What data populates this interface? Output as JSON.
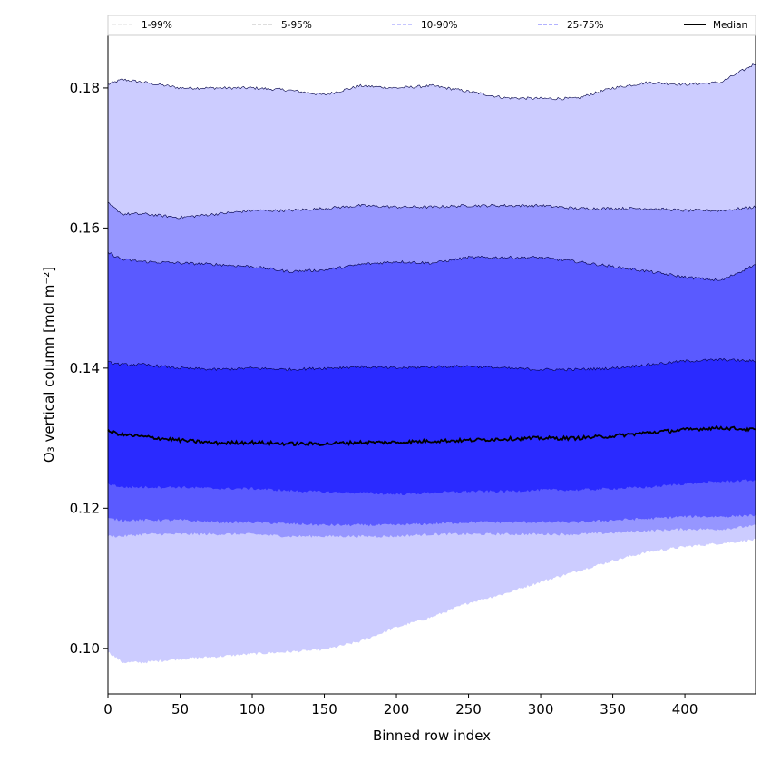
{
  "chart_data": {
    "type": "area",
    "title": "",
    "xlabel": "Binned row index",
    "ylabel": "O₃ vertical column [mol m⁻²]",
    "xlim": [
      0,
      449
    ],
    "ylim": [
      0.0935,
      0.1875
    ],
    "xticks": [
      0,
      50,
      100,
      150,
      200,
      250,
      300,
      350,
      400
    ],
    "yticks": [
      0.1,
      0.12,
      0.14,
      0.16,
      0.18
    ],
    "ytick_labels": [
      "0.10",
      "0.12",
      "0.14",
      "0.16",
      "0.18"
    ],
    "grid": false,
    "legend_position": "top, outside plot, single row",
    "x": [
      0,
      10,
      25,
      50,
      75,
      100,
      125,
      150,
      175,
      200,
      225,
      250,
      275,
      300,
      325,
      350,
      375,
      400,
      425,
      449
    ],
    "bands": [
      {
        "name": "1-99%",
        "fill": "#ccccff",
        "line": "#dddddd",
        "upper": [
          0.1805,
          0.1812,
          0.1808,
          0.18,
          0.18,
          0.18,
          0.1797,
          0.179,
          0.1803,
          0.18,
          0.1803,
          0.1795,
          0.1786,
          0.1785,
          0.1785,
          0.18,
          0.1808,
          0.1805,
          0.1808,
          0.1835
        ],
        "lower": [
          0.0995,
          0.098,
          0.098,
          0.0985,
          0.0988,
          0.0992,
          0.0995,
          0.0998,
          0.101,
          0.103,
          0.1045,
          0.1065,
          0.1078,
          0.1095,
          0.111,
          0.1125,
          0.1138,
          0.1145,
          0.115,
          0.1155
        ]
      },
      {
        "name": "5-95%",
        "fill": "#9696ff",
        "line": "#bbbbbb",
        "upper": [
          0.1635,
          0.162,
          0.162,
          0.1615,
          0.162,
          0.1625,
          0.1625,
          0.1628,
          0.1632,
          0.163,
          0.163,
          0.1632,
          0.1632,
          0.1632,
          0.1628,
          0.1628,
          0.1628,
          0.1625,
          0.1625,
          0.163
        ],
        "lower": [
          0.116,
          0.116,
          0.1163,
          0.1163,
          0.1163,
          0.1163,
          0.116,
          0.116,
          0.116,
          0.116,
          0.1163,
          0.1163,
          0.1163,
          0.1163,
          0.1163,
          0.1165,
          0.1168,
          0.117,
          0.117,
          0.1175
        ]
      },
      {
        "name": "10-90%",
        "fill": "#5a5aff",
        "line": "#8c8cff",
        "upper": [
          0.1565,
          0.1555,
          0.1552,
          0.155,
          0.1548,
          0.1545,
          0.1538,
          0.154,
          0.1548,
          0.1552,
          0.155,
          0.1558,
          0.1558,
          0.1558,
          0.1552,
          0.1545,
          0.1538,
          0.153,
          0.1525,
          0.1548
        ],
        "lower": [
          0.1185,
          0.1183,
          0.1183,
          0.1183,
          0.118,
          0.118,
          0.1178,
          0.1176,
          0.1176,
          0.1176,
          0.1178,
          0.118,
          0.118,
          0.118,
          0.118,
          0.1183,
          0.1185,
          0.1188,
          0.1188,
          0.119
        ]
      },
      {
        "name": "25-75%",
        "fill": "#2a2aff",
        "line": "#6464ff",
        "upper": [
          0.1408,
          0.1405,
          0.1405,
          0.14,
          0.1398,
          0.14,
          0.1398,
          0.14,
          0.1402,
          0.14,
          0.1402,
          0.1403,
          0.14,
          0.1398,
          0.1398,
          0.14,
          0.1405,
          0.141,
          0.1412,
          0.141
        ],
        "lower": [
          0.1235,
          0.123,
          0.123,
          0.123,
          0.1228,
          0.1228,
          0.1225,
          0.1223,
          0.1222,
          0.122,
          0.1222,
          0.1224,
          0.1224,
          0.1226,
          0.1226,
          0.1228,
          0.123,
          0.1235,
          0.1238,
          0.124
        ]
      }
    ],
    "median": {
      "name": "Median",
      "color": "#000000",
      "values": [
        0.131,
        0.1305,
        0.1302,
        0.1297,
        0.1293,
        0.1294,
        0.1292,
        0.1292,
        0.1294,
        0.1294,
        0.1296,
        0.1297,
        0.1299,
        0.13,
        0.13,
        0.1303,
        0.1308,
        0.1312,
        0.1315,
        0.1312
      ]
    }
  }
}
